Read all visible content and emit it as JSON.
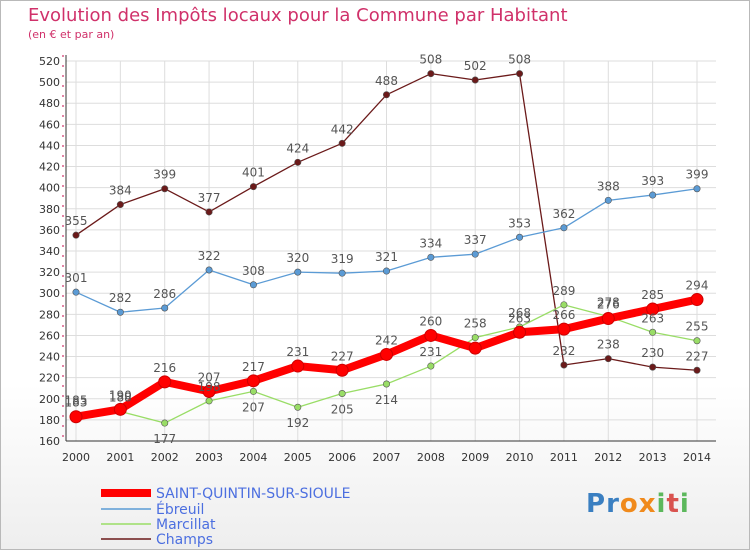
{
  "title": "Evolution des Impôts locaux pour la Commune par Habitant",
  "subtitle": "(en € et par an)",
  "logo": {
    "text": "Proxiti",
    "letters": [
      "P",
      "r",
      "o",
      "x",
      "i",
      "t",
      "i"
    ],
    "colors": [
      "#3a7fc1",
      "#3a7fc1",
      "#f08a1c",
      "#f08a1c",
      "#5cb85c",
      "#d9534f",
      "#5cb85c"
    ]
  },
  "chart_data": {
    "type": "line",
    "categories": [
      "2000",
      "2001",
      "2002",
      "2003",
      "2004",
      "2005",
      "2006",
      "2007",
      "2008",
      "2009",
      "2010",
      "2011",
      "2012",
      "2013",
      "2014"
    ],
    "ylim": [
      160,
      520
    ],
    "yticks": [
      160,
      180,
      200,
      220,
      240,
      260,
      280,
      300,
      320,
      340,
      360,
      380,
      400,
      420,
      440,
      460,
      480,
      500,
      520
    ],
    "grid": true,
    "legend_placement": "bottom-left",
    "series": [
      {
        "name": "SAINT-QUINTIN-SUR-SIOULE",
        "color": "#ff0000",
        "values": [
          183,
          190,
          216,
          207,
          217,
          231,
          227,
          242,
          260,
          248,
          263,
          266,
          276,
          285,
          294
        ],
        "labels": [
          "183",
          "190",
          "216",
          "207",
          "217",
          "231",
          "227",
          "242",
          "260",
          "",
          "263",
          "266",
          "276",
          "285",
          "294"
        ]
      },
      {
        "name": "Ébreuil",
        "color": "#5b9bd5",
        "values": [
          301,
          282,
          286,
          322,
          308,
          320,
          319,
          321,
          334,
          337,
          353,
          362,
          388,
          393,
          399
        ],
        "labels": [
          "301",
          "282",
          "286",
          "322",
          "308",
          "320",
          "319",
          "321",
          "334",
          "337",
          "353",
          "362",
          "388",
          "393",
          "399"
        ]
      },
      {
        "name": "Marcillat",
        "color": "#99dd66",
        "values": [
          185,
          188,
          177,
          198,
          207,
          192,
          205,
          214,
          231,
          258,
          268,
          289,
          278,
          263,
          255
        ],
        "labels": [
          "185",
          "188",
          "177",
          "198",
          "207",
          "192",
          "205",
          "214",
          "231",
          "258",
          "268",
          "289",
          "278",
          "263",
          "255"
        ]
      },
      {
        "name": "Champs",
        "color": "#6b1a1a",
        "values": [
          355,
          384,
          399,
          377,
          401,
          424,
          442,
          488,
          508,
          502,
          508,
          232,
          238,
          230,
          227
        ],
        "labels": [
          "355",
          "384",
          "399",
          "377",
          "401",
          "424",
          "442",
          "488",
          "508",
          "502",
          "508",
          "232",
          "238",
          "230",
          "227"
        ]
      }
    ]
  }
}
